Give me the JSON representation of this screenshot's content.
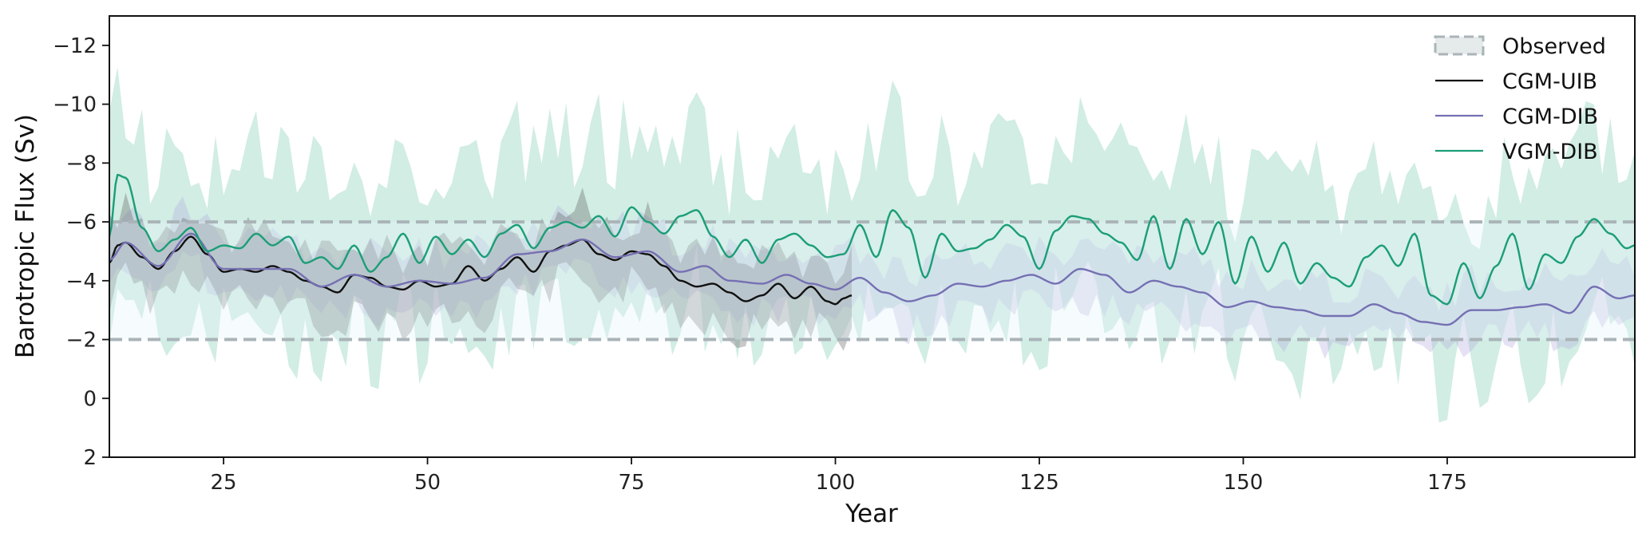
{
  "chart_data": {
    "type": "line",
    "xlabel": "Year",
    "ylabel": "Barotropic Flux (Sv)",
    "xlim": [
      11,
      198
    ],
    "ylim": [
      2,
      -13
    ],
    "y_axis_inverted": true,
    "grid": false,
    "legend_position": "top-right",
    "x_ticks": [
      "25",
      "50",
      "75",
      "100",
      "125",
      "150",
      "175"
    ],
    "y_ticks": [
      "−12",
      "−10",
      "−8",
      "−6",
      "−4",
      "−2",
      "0",
      "2"
    ],
    "observed": {
      "label": "Observed",
      "range": [
        -6,
        -2
      ],
      "color": "#aab4b8"
    },
    "series": [
      {
        "name": "CGM-UIB",
        "color": "#111111",
        "x_start": 11,
        "x_end": 102,
        "mean_anchors": [
          [
            11,
            -4.6
          ],
          [
            12,
            -5.2
          ],
          [
            13,
            -5.3
          ],
          [
            15,
            -4.8
          ],
          [
            17,
            -4.4
          ],
          [
            19,
            -5.0
          ],
          [
            21,
            -5.5
          ],
          [
            23,
            -4.9
          ],
          [
            25,
            -4.3
          ],
          [
            27,
            -4.4
          ],
          [
            29,
            -4.3
          ],
          [
            31,
            -4.5
          ],
          [
            33,
            -4.3
          ],
          [
            35,
            -4.0
          ],
          [
            37,
            -3.8
          ],
          [
            39,
            -3.6
          ],
          [
            41,
            -4.2
          ],
          [
            43,
            -4.1
          ],
          [
            45,
            -3.8
          ],
          [
            47,
            -3.7
          ],
          [
            49,
            -4.0
          ],
          [
            51,
            -3.8
          ],
          [
            53,
            -3.9
          ],
          [
            55,
            -4.5
          ],
          [
            57,
            -4.0
          ],
          [
            59,
            -4.4
          ],
          [
            61,
            -4.8
          ],
          [
            63,
            -4.3
          ],
          [
            65,
            -5.0
          ],
          [
            67,
            -5.2
          ],
          [
            69,
            -5.4
          ],
          [
            71,
            -4.9
          ],
          [
            73,
            -4.7
          ],
          [
            75,
            -5.0
          ],
          [
            77,
            -4.9
          ],
          [
            79,
            -4.5
          ],
          [
            81,
            -4.0
          ],
          [
            83,
            -3.8
          ],
          [
            85,
            -3.9
          ],
          [
            87,
            -3.6
          ],
          [
            89,
            -3.3
          ],
          [
            91,
            -3.5
          ],
          [
            93,
            -3.9
          ],
          [
            95,
            -3.4
          ],
          [
            97,
            -3.8
          ],
          [
            99,
            -3.3
          ],
          [
            100,
            -3.2
          ],
          [
            101,
            -3.4
          ],
          [
            102,
            -3.5
          ]
        ],
        "spread": 1.4
      },
      {
        "name": "CGM-DIB",
        "color": "#7570b3",
        "x_start": 11,
        "x_end": 198,
        "mean_anchors": [
          [
            11,
            -4.7
          ],
          [
            13,
            -5.3
          ],
          [
            17,
            -4.5
          ],
          [
            21,
            -5.6
          ],
          [
            25,
            -4.4
          ],
          [
            29,
            -4.4
          ],
          [
            33,
            -4.4
          ],
          [
            37,
            -3.8
          ],
          [
            41,
            -4.2
          ],
          [
            45,
            -3.8
          ],
          [
            49,
            -4.0
          ],
          [
            53,
            -3.9
          ],
          [
            57,
            -4.1
          ],
          [
            61,
            -4.9
          ],
          [
            65,
            -5.0
          ],
          [
            69,
            -5.4
          ],
          [
            73,
            -4.8
          ],
          [
            77,
            -5.0
          ],
          [
            81,
            -4.3
          ],
          [
            84,
            -4.5
          ],
          [
            87,
            -4.0
          ],
          [
            91,
            -3.9
          ],
          [
            94,
            -4.2
          ],
          [
            97,
            -3.9
          ],
          [
            100,
            -3.7
          ],
          [
            103,
            -4.1
          ],
          [
            106,
            -3.6
          ],
          [
            109,
            -3.3
          ],
          [
            112,
            -3.5
          ],
          [
            115,
            -3.9
          ],
          [
            118,
            -3.8
          ],
          [
            121,
            -4.0
          ],
          [
            124,
            -4.2
          ],
          [
            127,
            -3.9
          ],
          [
            130,
            -4.4
          ],
          [
            133,
            -4.2
          ],
          [
            136,
            -3.6
          ],
          [
            139,
            -4.0
          ],
          [
            142,
            -3.8
          ],
          [
            145,
            -3.6
          ],
          [
            148,
            -3.1
          ],
          [
            151,
            -3.3
          ],
          [
            154,
            -3.1
          ],
          [
            157,
            -3.0
          ],
          [
            160,
            -2.8
          ],
          [
            163,
            -2.8
          ],
          [
            166,
            -3.2
          ],
          [
            169,
            -2.9
          ],
          [
            172,
            -2.6
          ],
          [
            175,
            -2.5
          ],
          [
            178,
            -3.0
          ],
          [
            181,
            -3.0
          ],
          [
            184,
            -3.1
          ],
          [
            187,
            -3.2
          ],
          [
            190,
            -2.9
          ],
          [
            193,
            -3.8
          ],
          [
            196,
            -3.4
          ],
          [
            198,
            -3.5
          ]
        ],
        "spread": 1.2
      },
      {
        "name": "VGM-DIB",
        "color": "#1b9e77",
        "x_start": 11,
        "x_end": 198,
        "mean_anchors": [
          [
            11,
            -5.5
          ],
          [
            12,
            -7.6
          ],
          [
            13,
            -7.5
          ],
          [
            15,
            -5.8
          ],
          [
            17,
            -5.0
          ],
          [
            19,
            -5.4
          ],
          [
            21,
            -5.8
          ],
          [
            23,
            -5.0
          ],
          [
            25,
            -5.2
          ],
          [
            27,
            -5.1
          ],
          [
            29,
            -5.6
          ],
          [
            31,
            -5.2
          ],
          [
            33,
            -5.5
          ],
          [
            35,
            -4.6
          ],
          [
            37,
            -4.8
          ],
          [
            39,
            -4.4
          ],
          [
            41,
            -5.2
          ],
          [
            43,
            -4.3
          ],
          [
            45,
            -4.8
          ],
          [
            47,
            -5.6
          ],
          [
            49,
            -4.6
          ],
          [
            51,
            -5.5
          ],
          [
            53,
            -4.9
          ],
          [
            55,
            -5.4
          ],
          [
            57,
            -4.8
          ],
          [
            59,
            -5.6
          ],
          [
            61,
            -5.9
          ],
          [
            63,
            -5.1
          ],
          [
            65,
            -5.8
          ],
          [
            67,
            -6.0
          ],
          [
            69,
            -5.8
          ],
          [
            71,
            -6.2
          ],
          [
            73,
            -5.5
          ],
          [
            75,
            -6.5
          ],
          [
            77,
            -6.0
          ],
          [
            79,
            -5.6
          ],
          [
            81,
            -6.2
          ],
          [
            83,
            -6.4
          ],
          [
            85,
            -5.5
          ],
          [
            87,
            -4.8
          ],
          [
            89,
            -5.4
          ],
          [
            91,
            -4.6
          ],
          [
            93,
            -5.4
          ],
          [
            95,
            -5.6
          ],
          [
            97,
            -5.2
          ],
          [
            99,
            -4.8
          ],
          [
            101,
            -4.9
          ],
          [
            103,
            -5.9
          ],
          [
            105,
            -4.8
          ],
          [
            107,
            -6.4
          ],
          [
            109,
            -5.8
          ],
          [
            111,
            -4.1
          ],
          [
            113,
            -5.6
          ],
          [
            115,
            -5.0
          ],
          [
            117,
            -5.1
          ],
          [
            119,
            -5.4
          ],
          [
            121,
            -5.9
          ],
          [
            123,
            -5.5
          ],
          [
            125,
            -4.4
          ],
          [
            127,
            -5.7
          ],
          [
            129,
            -6.2
          ],
          [
            131,
            -6.1
          ],
          [
            133,
            -5.6
          ],
          [
            135,
            -5.3
          ],
          [
            137,
            -4.7
          ],
          [
            139,
            -6.2
          ],
          [
            141,
            -4.4
          ],
          [
            143,
            -6.1
          ],
          [
            145,
            -4.9
          ],
          [
            147,
            -6.0
          ],
          [
            149,
            -3.9
          ],
          [
            151,
            -5.5
          ],
          [
            153,
            -4.3
          ],
          [
            155,
            -5.3
          ],
          [
            157,
            -3.9
          ],
          [
            159,
            -4.6
          ],
          [
            161,
            -4.1
          ],
          [
            163,
            -3.8
          ],
          [
            165,
            -4.8
          ],
          [
            167,
            -5.2
          ],
          [
            169,
            -4.5
          ],
          [
            171,
            -5.6
          ],
          [
            173,
            -3.5
          ],
          [
            175,
            -3.2
          ],
          [
            177,
            -4.6
          ],
          [
            179,
            -3.4
          ],
          [
            181,
            -4.5
          ],
          [
            183,
            -5.6
          ],
          [
            185,
            -3.7
          ],
          [
            187,
            -4.9
          ],
          [
            189,
            -4.6
          ],
          [
            191,
            -5.5
          ],
          [
            193,
            -6.1
          ],
          [
            195,
            -5.6
          ],
          [
            197,
            -5.1
          ],
          [
            198,
            -5.2
          ]
        ],
        "spread": 3.4
      }
    ]
  },
  "legend": {
    "items": [
      {
        "label": "Observed",
        "kind": "patch",
        "color": "#aab4b8"
      },
      {
        "label": "CGM-UIB",
        "kind": "line",
        "color": "#111111"
      },
      {
        "label": "CGM-DIB",
        "kind": "line",
        "color": "#7570b3"
      },
      {
        "label": "VGM-DIB",
        "kind": "line",
        "color": "#1b9e77"
      }
    ]
  }
}
